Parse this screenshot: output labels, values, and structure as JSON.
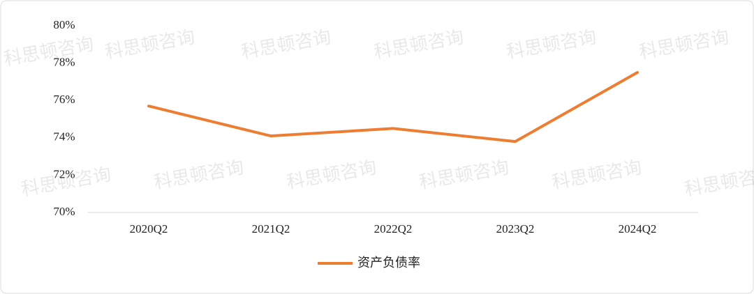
{
  "chart_data": {
    "type": "line",
    "watermark": "科思顿咨询",
    "categories": [
      "2020Q2",
      "2021Q2",
      "2022Q2",
      "2023Q2",
      "2024Q2"
    ],
    "series": [
      {
        "name": "资产负债率",
        "color": "#ED7D31",
        "values": [
          75.7,
          74.1,
          74.5,
          73.8,
          77.5
        ]
      }
    ],
    "ylim": [
      70,
      80
    ],
    "yticks": [
      {
        "value": 70,
        "label": "70%"
      },
      {
        "value": 72,
        "label": "72%"
      },
      {
        "value": 74,
        "label": "74%"
      },
      {
        "value": 76,
        "label": "76%"
      },
      {
        "value": 78,
        "label": "78%"
      },
      {
        "value": 80,
        "label": "80%"
      }
    ],
    "grid": false,
    "legend": "bottom"
  }
}
